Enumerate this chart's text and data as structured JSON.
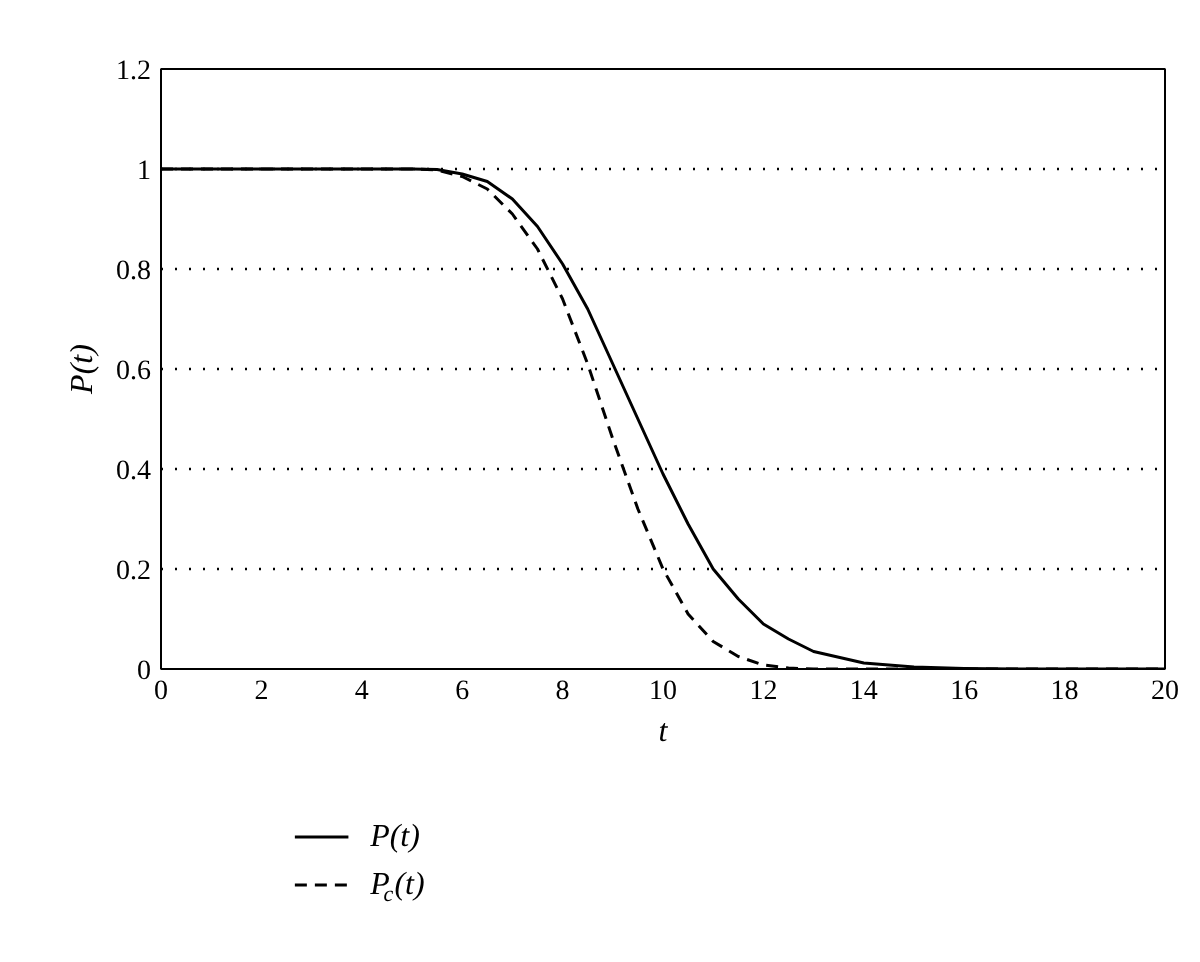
{
  "chart_data": {
    "type": "line",
    "xlabel": "t",
    "ylabel": "P(t)",
    "x": [
      0,
      5,
      5.5,
      6,
      6.5,
      7,
      7.5,
      8,
      8.5,
      9,
      9.5,
      10,
      10.5,
      11,
      11.5,
      12,
      12.5,
      13,
      14,
      15,
      16,
      17,
      20
    ],
    "series": [
      {
        "name": "P(t)",
        "color": "#000000",
        "line_style": "solid",
        "values": [
          1,
          1,
          0.999,
          0.99,
          0.975,
          0.94,
          0.885,
          0.81,
          0.72,
          0.61,
          0.5,
          0.39,
          0.29,
          0.2,
          0.14,
          0.09,
          0.06,
          0.035,
          0.012,
          0.004,
          0.001,
          0,
          0
        ]
      },
      {
        "name": "P$_{c}$(t)",
        "color": "#000000",
        "line_style": "dashed",
        "values": [
          1,
          1,
          0.998,
          0.985,
          0.96,
          0.91,
          0.84,
          0.74,
          0.61,
          0.46,
          0.32,
          0.2,
          0.11,
          0.055,
          0.025,
          0.008,
          0.002,
          0,
          0,
          0,
          0,
          0,
          0
        ]
      }
    ],
    "xlim": [
      0,
      20
    ],
    "xticks": [
      0,
      2,
      4,
      6,
      8,
      10,
      12,
      14,
      16,
      18,
      20
    ],
    "ylim": [
      0,
      1.2
    ],
    "yticks": [
      0,
      0.2,
      0.4,
      0.6,
      0.8,
      1,
      1.2
    ],
    "grid": "y",
    "legend": "bottom",
    "marker": "none"
  }
}
